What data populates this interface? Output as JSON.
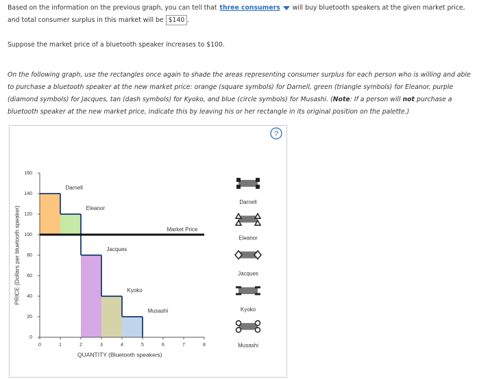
{
  "intro": {
    "part1": "Based on the information on the previous graph, you can tell that",
    "dropdown": "three consumers",
    "part2": "will buy bluetooth speakers at the given market price, and total consumer surplus in this market will be",
    "answer": "$140",
    "part3": "."
  },
  "prompt": "Suppose the market price of a bluetooth speaker increases to $100.",
  "instructions": {
    "text1": "On the following graph, use the rectangles once again to shade the areas representing consumer surplus for each person who is willing and able to purchase a bluetooth speaker at the new market price: orange (square symbols) for Darnell, green (triangle symbols) for Eleanor, purple (diamond symbols) for Jacques, tan (dash symbols) for Kyoko, and blue (circle symbols) for Musashi. (",
    "note": "Note",
    "text2": ": If a person will ",
    "not": "not",
    "text3": " purchase a bluetooth speaker at the new market price, indicate this by leaving his or her rectangle in its original position on the palette.)"
  },
  "help": "?",
  "chart_data": {
    "type": "step",
    "x_label": "QUANTITY (Bluetooth speakers)",
    "y_label": "PRICE (Dollars per bluetooth speaker)",
    "xlim": [
      0,
      8
    ],
    "xticks": [
      0,
      1,
      2,
      3,
      4,
      5,
      6,
      7,
      8
    ],
    "ylim": [
      0,
      160
    ],
    "yticks": [
      0,
      20,
      40,
      60,
      80,
      100,
      120,
      140,
      160
    ],
    "consumers": [
      "Darnell",
      "Eleanor",
      "Jacques",
      "Kyoko",
      "Musashi"
    ],
    "values": [
      140,
      120,
      80,
      40,
      20
    ],
    "line_color": "#2d4d80",
    "market_price": {
      "label": "Market Price",
      "value": 100,
      "color": "#111111"
    },
    "rectangles": [
      {
        "color": "#fdc57e",
        "x": [
          0,
          1
        ],
        "y": [
          100,
          140
        ]
      },
      {
        "color": "#c6e9a8",
        "x": [
          1,
          2
        ],
        "y": [
          100,
          120
        ]
      },
      {
        "color": "#d7a8e6",
        "x": [
          2,
          3
        ],
        "y": [
          0,
          80
        ]
      },
      {
        "color": "#d6d3a8",
        "x": [
          3,
          4
        ],
        "y": [
          0,
          40
        ]
      },
      {
        "color": "#c0d5eb",
        "x": [
          4,
          5
        ],
        "y": [
          0,
          20
        ]
      }
    ],
    "palette": [
      "Darnell",
      "Eleanor",
      "Jacques",
      "Kyoko",
      "Musashi"
    ],
    "palette_shapes": [
      "square",
      "triangle",
      "diamond",
      "dash",
      "circle"
    ]
  }
}
